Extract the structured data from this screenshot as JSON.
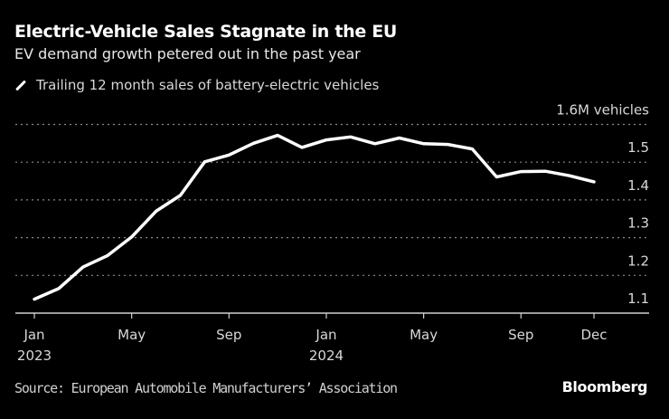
{
  "header": {
    "title": "Electric-Vehicle Sales Stagnate in the EU",
    "subtitle": "EV demand growth petered out in the past year"
  },
  "footer": {
    "source": "Source: European Automobile Manufacturers’ Association",
    "brand": "Bloomberg"
  },
  "chart_data": {
    "type": "line",
    "title": "Electric-Vehicle Sales Stagnate in the EU",
    "subtitle": "EV demand growth petered out in the past year",
    "ylabel": "",
    "y_unit_label": "1.6M vehicles",
    "ylim": [
      1.1,
      1.6
    ],
    "yticks": [
      1.1,
      1.2,
      1.3,
      1.4,
      1.5,
      1.6
    ],
    "ytick_labels": [
      "1.1",
      "1.2",
      "1.3",
      "1.4",
      "1.5",
      "1.6M vehicles"
    ],
    "y_axis_side": "right",
    "grid": "horizontal dotted",
    "legend_position": "top-left",
    "line_color": "#ffffff",
    "background": "#000000",
    "xticks": [
      {
        "month": "2023-01",
        "label": "Jan",
        "year": "2023"
      },
      {
        "month": "2023-05",
        "label": "May",
        "year": ""
      },
      {
        "month": "2023-09",
        "label": "Sep",
        "year": ""
      },
      {
        "month": "2024-01",
        "label": "Jan",
        "year": "2024"
      },
      {
        "month": "2024-05",
        "label": "May",
        "year": ""
      },
      {
        "month": "2024-09",
        "label": "Sep",
        "year": ""
      },
      {
        "month": "2024-12",
        "label": "Dec",
        "year": ""
      }
    ],
    "series": [
      {
        "name": "Trailing 12 month sales of battery-electric vehicles",
        "x": [
          "2023-01",
          "2023-02",
          "2023-03",
          "2023-04",
          "2023-05",
          "2023-06",
          "2023-07",
          "2023-08",
          "2023-09",
          "2023-10",
          "2023-11",
          "2023-12",
          "2024-01",
          "2024-02",
          "2024-03",
          "2024-04",
          "2024-05",
          "2024-06",
          "2024-07",
          "2024-08",
          "2024-09",
          "2024-10",
          "2024-11",
          "2024-12"
        ],
        "values": [
          1.137,
          1.165,
          1.222,
          1.252,
          1.302,
          1.37,
          1.412,
          1.501,
          1.519,
          1.55,
          1.571,
          1.539,
          1.559,
          1.567,
          1.549,
          1.564,
          1.549,
          1.547,
          1.535,
          1.461,
          1.475,
          1.476,
          1.464,
          1.448
        ]
      }
    ]
  }
}
